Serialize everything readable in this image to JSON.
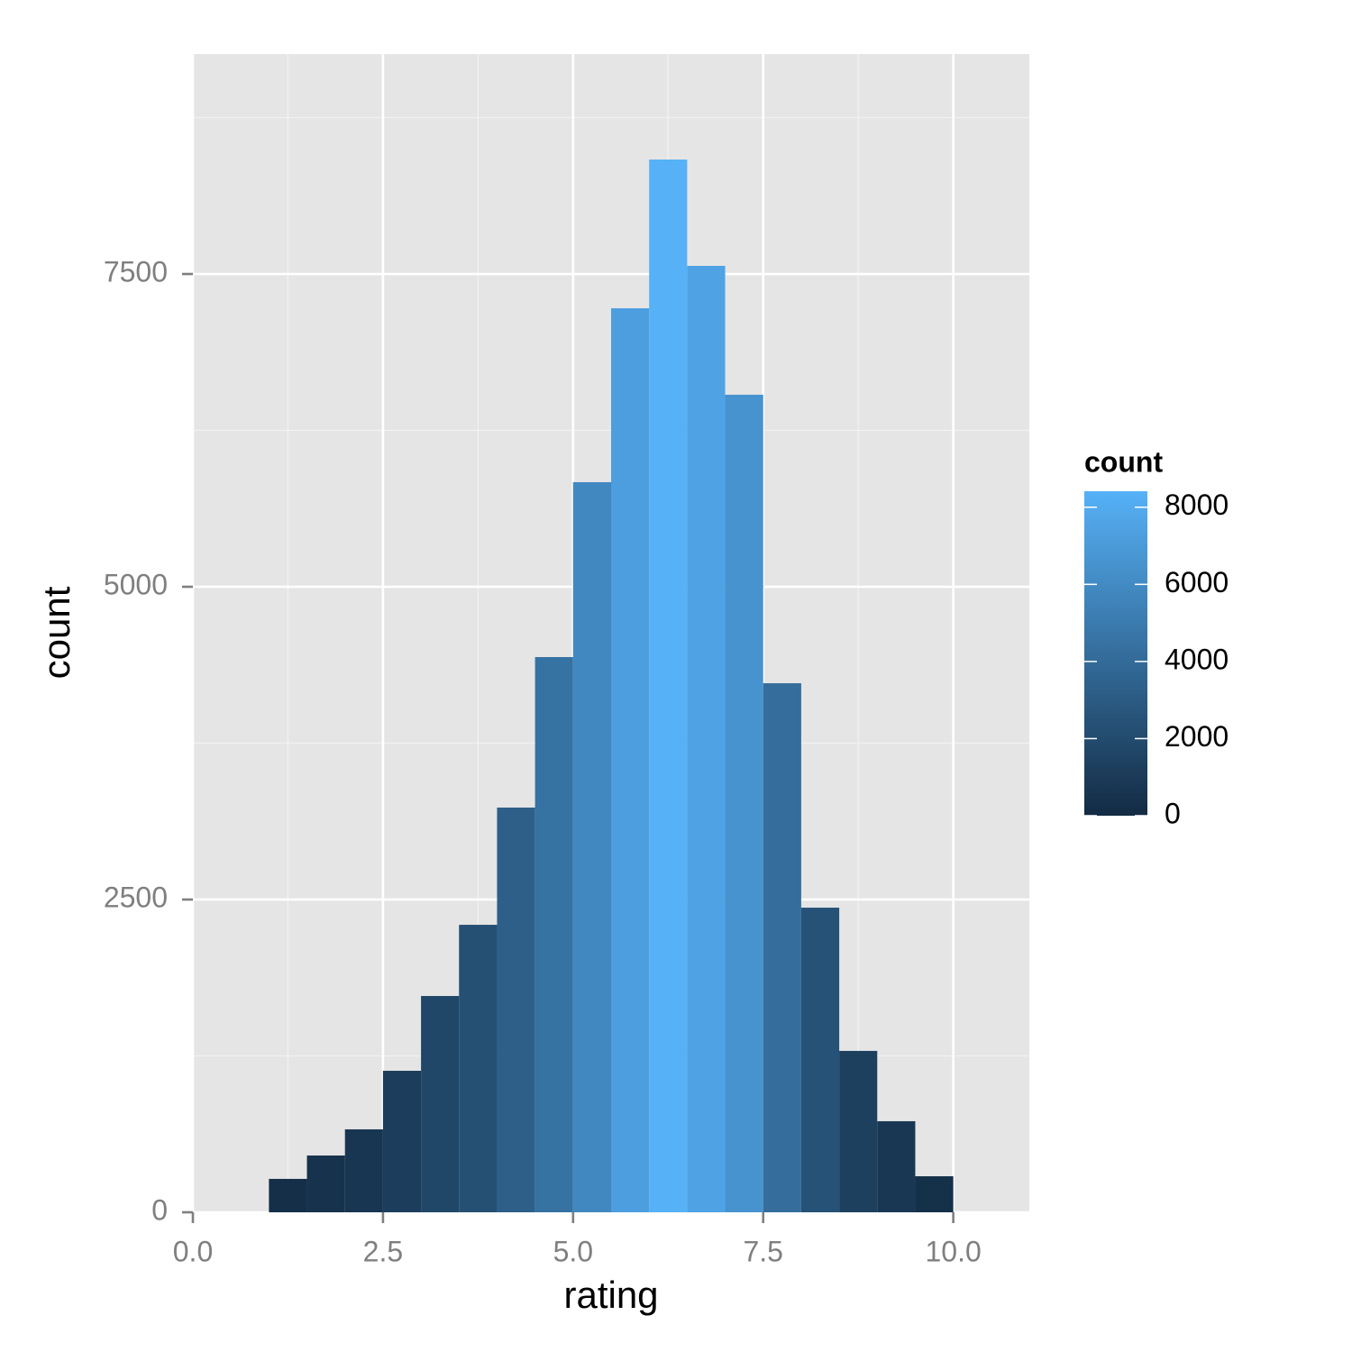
{
  "chart_data": {
    "type": "histogram",
    "x_label": "rating",
    "y_label": "count",
    "bins": [
      1,
      1.5,
      2,
      2.5,
      3,
      3.5,
      4,
      4.5,
      5,
      5.5,
      6,
      6.5,
      7,
      7.5,
      8,
      8.5,
      9,
      9.5,
      10
    ],
    "values": [
      267,
      454,
      663,
      1131,
      1729,
      2298,
      3235,
      4438,
      5836,
      7226,
      8415,
      7565,
      6535,
      4229,
      2435,
      1290,
      728,
      288
    ],
    "xlim": [
      0,
      11
    ],
    "xticks": [
      {
        "value": 0,
        "label": "0.0"
      },
      2.5,
      {
        "value": 5,
        "label": "5.0"
      },
      7.5,
      {
        "value": 10,
        "label": "10.0"
      }
    ],
    "ylim": [
      0,
      9258
    ],
    "yticks": [
      0,
      2500,
      5000,
      7500
    ],
    "grid": true,
    "legend": {
      "title": "count",
      "low_color": "#132B43",
      "high_color": "#56B1F7",
      "ticks": [
        0,
        2000,
        4000,
        6000,
        8000
      ]
    }
  }
}
